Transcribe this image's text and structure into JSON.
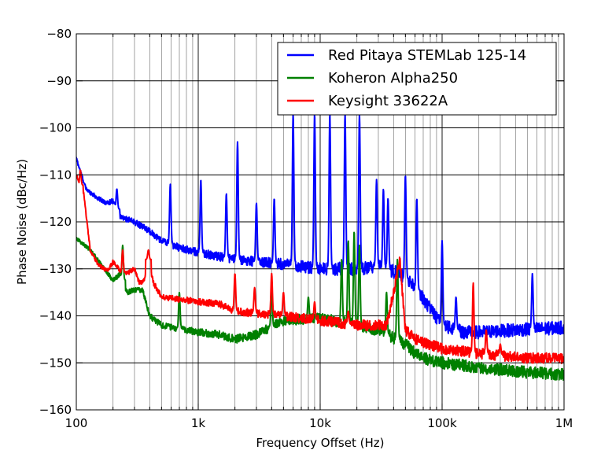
{
  "chart_data": {
    "type": "line",
    "title": "",
    "xlabel": "Frequency Offset (Hz)",
    "ylabel": "Phase Noise (dBc/Hz)",
    "xscale": "log",
    "xlim": [
      100,
      1000000
    ],
    "ylim": [
      -160,
      -80
    ],
    "grid": true,
    "legend_position": "top-right",
    "x_ticks": [
      {
        "value": 100,
        "label": "100"
      },
      {
        "value": 1000,
        "label": "1k"
      },
      {
        "value": 10000,
        "label": "10k"
      },
      {
        "value": 100000,
        "label": "100k"
      },
      {
        "value": 1000000,
        "label": "1M"
      }
    ],
    "y_ticks": [
      {
        "value": -80,
        "label": "−80"
      },
      {
        "value": -90,
        "label": "−90"
      },
      {
        "value": -100,
        "label": "−100"
      },
      {
        "value": -110,
        "label": "−110"
      },
      {
        "value": -120,
        "label": "−120"
      },
      {
        "value": -130,
        "label": "−130"
      },
      {
        "value": -140,
        "label": "−140"
      },
      {
        "value": -150,
        "label": "−150"
      },
      {
        "value": -160,
        "label": "−160"
      }
    ],
    "series": [
      {
        "name": "Red Pitaya STEMLab 125-14",
        "color": "#0000ff",
        "noise": 1.0,
        "baseline": [
          [
            100,
            -106.5
          ],
          [
            120,
            -113
          ],
          [
            150,
            -115
          ],
          [
            180,
            -116
          ],
          [
            200,
            -115.5
          ],
          [
            230,
            -119
          ],
          [
            300,
            -120
          ],
          [
            400,
            -122
          ],
          [
            500,
            -124
          ],
          [
            700,
            -125.5
          ],
          [
            1000,
            -126.5
          ],
          [
            2000,
            -128
          ],
          [
            5000,
            -129
          ],
          [
            10000,
            -130
          ],
          [
            20000,
            -130
          ],
          [
            30000,
            -129.5
          ],
          [
            45000,
            -131
          ],
          [
            60000,
            -134
          ],
          [
            80000,
            -138.5
          ],
          [
            100000,
            -142
          ],
          [
            150000,
            -143.5
          ],
          [
            200000,
            -143.5
          ],
          [
            400000,
            -143
          ],
          [
            1000000,
            -142.5
          ]
        ],
        "spurs": [
          [
            215,
            -113
          ],
          [
            590,
            -112
          ],
          [
            1050,
            -111
          ],
          [
            1700,
            -114
          ],
          [
            2100,
            -103
          ],
          [
            3000,
            -116
          ],
          [
            4200,
            -115
          ],
          [
            6000,
            -97
          ],
          [
            9000,
            -97
          ],
          [
            12000,
            -97
          ],
          [
            16000,
            -97
          ],
          [
            21000,
            -97
          ],
          [
            29000,
            -111
          ],
          [
            33000,
            -113
          ],
          [
            36000,
            -115
          ],
          [
            50000,
            -110
          ],
          [
            62000,
            -115
          ],
          [
            100000,
            -124
          ],
          [
            130000,
            -136
          ],
          [
            550000,
            -131
          ]
        ]
      },
      {
        "name": "Koheron Alpha250",
        "color": "#008000",
        "noise": 0.9,
        "baseline": [
          [
            100,
            -123.5
          ],
          [
            130,
            -126
          ],
          [
            160,
            -129
          ],
          [
            200,
            -132.5
          ],
          [
            230,
            -131
          ],
          [
            260,
            -135
          ],
          [
            300,
            -134.5
          ],
          [
            350,
            -134.5
          ],
          [
            400,
            -140
          ],
          [
            500,
            -142
          ],
          [
            1000,
            -143.5
          ],
          [
            1500,
            -144
          ],
          [
            2000,
            -145
          ],
          [
            3000,
            -144
          ],
          [
            5000,
            -141
          ],
          [
            10000,
            -140.5
          ],
          [
            20000,
            -142
          ],
          [
            30000,
            -143
          ],
          [
            50000,
            -146
          ],
          [
            60000,
            -148
          ],
          [
            80000,
            -149.5
          ],
          [
            100000,
            -150
          ],
          [
            200000,
            -151
          ],
          [
            500000,
            -152
          ],
          [
            1000000,
            -152.5
          ]
        ],
        "spurs": [
          [
            240,
            -125
          ],
          [
            700,
            -135
          ],
          [
            4000,
            -134
          ],
          [
            8000,
            -136
          ],
          [
            15000,
            -128
          ],
          [
            17000,
            -124
          ],
          [
            19000,
            -122
          ],
          [
            21000,
            -125
          ],
          [
            35000,
            -135
          ],
          [
            43000,
            -128
          ]
        ]
      },
      {
        "name": "Keysight 33622A",
        "color": "#ff0000",
        "noise": 0.8,
        "baseline": [
          [
            100,
            -110
          ],
          [
            115,
            -114
          ],
          [
            130,
            -126
          ],
          [
            150,
            -129
          ],
          [
            180,
            -130.5
          ],
          [
            200,
            -128.5
          ],
          [
            240,
            -131
          ],
          [
            260,
            -131
          ],
          [
            300,
            -130
          ],
          [
            330,
            -133
          ],
          [
            360,
            -132.5
          ],
          [
            390,
            -128
          ],
          [
            430,
            -133
          ],
          [
            500,
            -136
          ],
          [
            1000,
            -137
          ],
          [
            1500,
            -137.5
          ],
          [
            2000,
            -139
          ],
          [
            3000,
            -139.5
          ],
          [
            5000,
            -140
          ],
          [
            10000,
            -141
          ],
          [
            20000,
            -142
          ],
          [
            35000,
            -142
          ],
          [
            40000,
            -135
          ],
          [
            45000,
            -128
          ],
          [
            50000,
            -143
          ],
          [
            60000,
            -145
          ],
          [
            100000,
            -147
          ],
          [
            200000,
            -148
          ],
          [
            500000,
            -149
          ],
          [
            1000000,
            -149
          ]
        ],
        "spurs": [
          [
            108,
            -109
          ],
          [
            240,
            -126
          ],
          [
            390,
            -126
          ],
          [
            2000,
            -131
          ],
          [
            2900,
            -134
          ],
          [
            4000,
            -131
          ],
          [
            5000,
            -135
          ],
          [
            9000,
            -137
          ],
          [
            17000,
            -139
          ],
          [
            180000,
            -133
          ],
          [
            230000,
            -143
          ],
          [
            300000,
            -146
          ]
        ]
      }
    ]
  }
}
